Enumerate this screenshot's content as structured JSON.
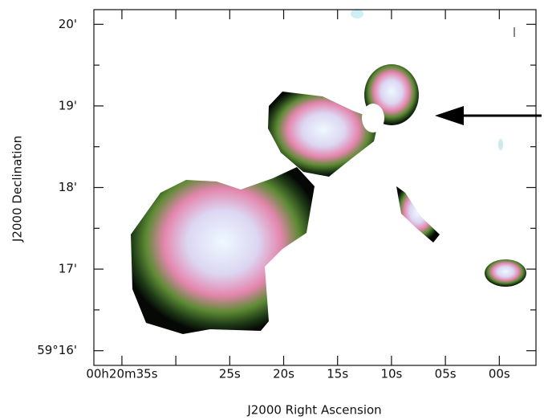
{
  "chart_data": {
    "type": "image",
    "x_label": "J2000 Right Ascension",
    "y_label": "J2000 Declination",
    "xlim": [
      37.6,
      -3.4
    ],
    "xticks": [
      {
        "value": 35,
        "label": "00h20m35s"
      },
      {
        "value": 25,
        "label": "25s"
      },
      {
        "value": 20,
        "label": "20s"
      },
      {
        "value": 15,
        "label": "15s"
      },
      {
        "value": 10,
        "label": "10s"
      },
      {
        "value": 5,
        "label": "05s"
      },
      {
        "value": 0,
        "label": "00s"
      }
    ],
    "xminorticks": [
      30
    ],
    "ylim": [
      15.82,
      20.18
    ],
    "yticks": [
      {
        "value": 16,
        "label": "59°16'"
      },
      {
        "value": 17,
        "label": "17'"
      },
      {
        "value": 18,
        "label": "18'"
      },
      {
        "value": 19,
        "label": "19'"
      },
      {
        "value": 20,
        "label": "20'"
      }
    ],
    "yminorticks": [
      16.5,
      17.5,
      18.5,
      19.5
    ]
  }
}
